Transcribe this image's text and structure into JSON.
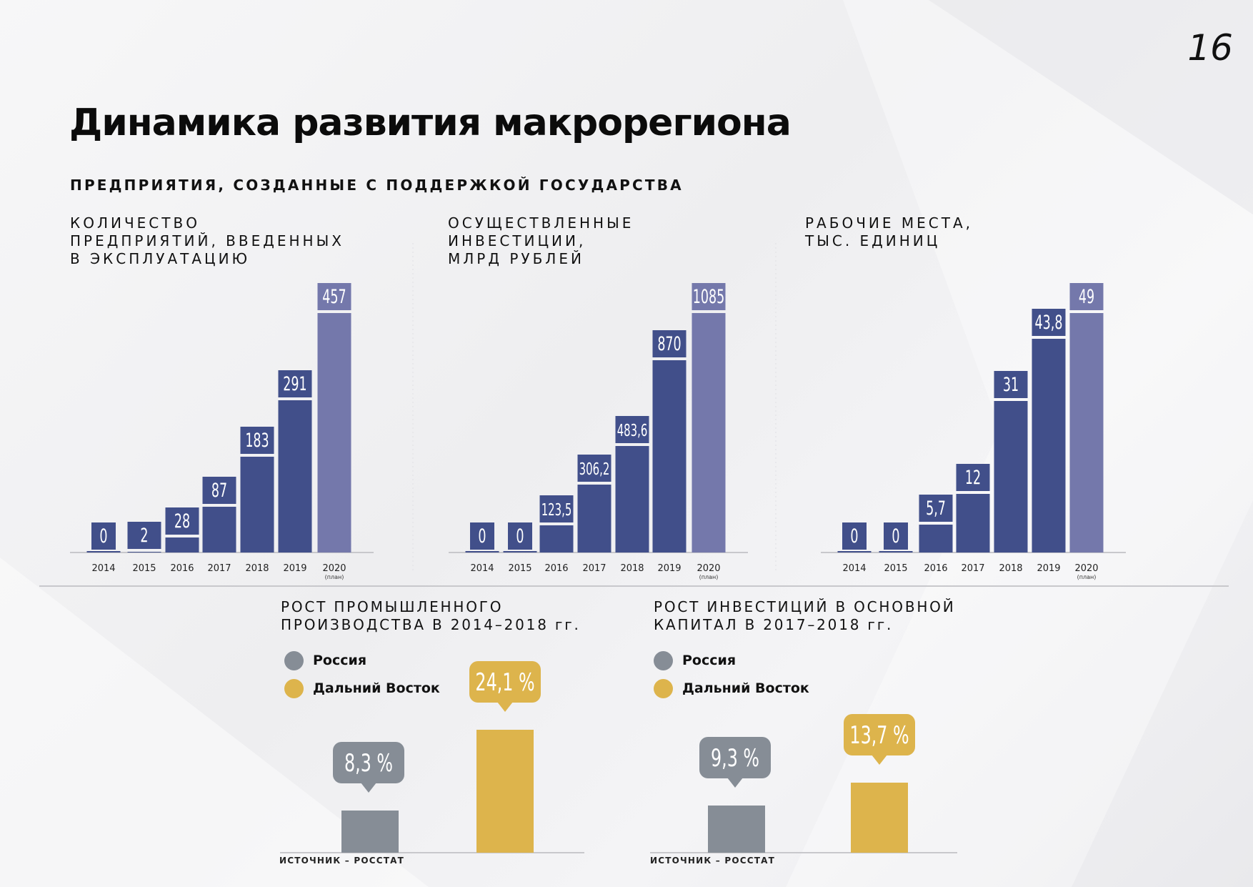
{
  "page_number": "16",
  "title": "Динамика развития макрорегиона",
  "subtitle": "ПРЕДПРИЯТИЯ, СОЗДАННЫЕ С ПОДДЕРЖКОЙ ГОСУДАРСТВА",
  "colors": {
    "bar": "#414f8a",
    "bar_plan": "#7478ab",
    "russia": "#868d96",
    "far_east": "#ddb44c",
    "axis": "#c8c8cc"
  },
  "plan_note": "(план)",
  "chart_data": [
    {
      "type": "bar",
      "title": "КОЛИЧЕСТВО\nПРЕДПРИЯТИЙ, ВВЕДЕННЫХ\nВ ЭКСПЛУАТАЦИЮ",
      "categories": [
        "2014",
        "2015",
        "2016",
        "2017",
        "2018",
        "2019",
        "2020"
      ],
      "values": [
        0,
        2,
        28,
        87,
        183,
        291,
        457
      ],
      "value_labels": [
        "0",
        "2",
        "28",
        "87",
        "183",
        "291",
        "457"
      ],
      "plan_category": "2020",
      "ylim": [
        0,
        457
      ]
    },
    {
      "type": "bar",
      "title": "ОСУЩЕСТВЛЕННЫЕ\nИНВЕСТИЦИИ,\nМЛРД РУБЛЕЙ",
      "categories": [
        "2014",
        "2015",
        "2016",
        "2017",
        "2018",
        "2019",
        "2020"
      ],
      "values": [
        0,
        0,
        123.5,
        306.2,
        483.6,
        870,
        1085
      ],
      "value_labels": [
        "0",
        "0",
        "123,5",
        "306,2",
        "483,6",
        "870",
        "1085"
      ],
      "plan_category": "2020",
      "ylim": [
        0,
        1085
      ]
    },
    {
      "type": "bar",
      "title": "РАБОЧИЕ МЕСТА,\nТЫС. ЕДИНИЦ",
      "categories": [
        "2014",
        "2015",
        "2016",
        "2017",
        "2018",
        "2019",
        "2020"
      ],
      "values": [
        0,
        0,
        5.7,
        12,
        31,
        43.8,
        49
      ],
      "value_labels": [
        "0",
        "0",
        "5,7",
        "12",
        "31",
        "43,8",
        "49"
      ],
      "plan_category": "2020",
      "ylim": [
        0,
        49
      ]
    },
    {
      "type": "bar",
      "title": "РОСТ ПРОМЫШЛЕННОГО\nПРОИЗВОДСТВА В 2014–2018 гг.",
      "series": [
        {
          "name": "Россия",
          "value": 8.3,
          "label": "8,3 %"
        },
        {
          "name": "Дальний Восток",
          "value": 24.1,
          "label": "24,1 %"
        }
      ],
      "source": "ИСТОЧНИК – РОССТАТ",
      "ylim": [
        0,
        24.1
      ]
    },
    {
      "type": "bar",
      "title": "РОСТ ИНВЕСТИЦИЙ В ОСНОВНОЙ\nКАПИТАЛ В 2017–2018 гг.",
      "series": [
        {
          "name": "Россия",
          "value": 9.3,
          "label": "9,3 %"
        },
        {
          "name": "Дальний Восток",
          "value": 13.7,
          "label": "13,7 %"
        }
      ],
      "source": "ИСТОЧНИК – РОССТАТ",
      "ylim": [
        0,
        24.1
      ]
    }
  ]
}
